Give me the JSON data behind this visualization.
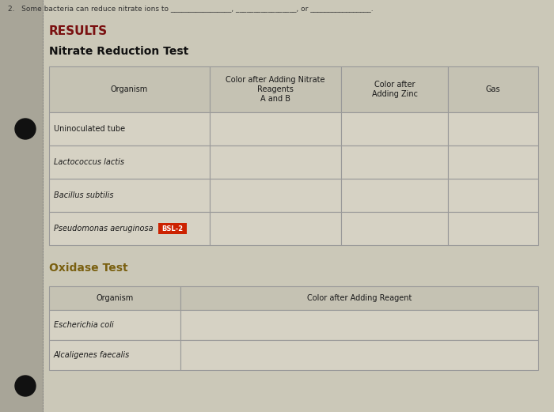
{
  "title_results": "RESULTS",
  "title_nitrate": "Nitrate Reduction Test",
  "title_oxidase": "Oxidase Test",
  "top_text": "2.   Some bacteria can reduce nitrate ions to _________________, _________________, or _________________.",
  "nitrate_headers": [
    "Organism",
    "Color after Adding Nitrate\nReagents\nA and B",
    "Color after\nAdding Zinc",
    "Gas"
  ],
  "nitrate_rows": [
    [
      "Uninoculated tube",
      "",
      "",
      ""
    ],
    [
      "Lactococcus lactis",
      "",
      "",
      ""
    ],
    [
      "Bacillus subtilis",
      "",
      "",
      ""
    ],
    [
      "Pseudomonas aeruginosa",
      "BSL-2",
      "",
      ""
    ]
  ],
  "oxidase_headers": [
    "Organism",
    "Color after Adding Reagent"
  ],
  "oxidase_rows": [
    [
      "Escherichia coli",
      ""
    ],
    [
      "Alcaligenes faecalis",
      ""
    ]
  ],
  "bg_color": "#cbc8b8",
  "table_bg": "#d6d2c4",
  "header_bg": "#c5c2b3",
  "left_margin_color": "#b8b5a5",
  "results_color": "#7a1010",
  "oxidase_color": "#7a6010",
  "bsl2_bg": "#cc2200",
  "bsl2_text": "#ffffff",
  "line_color": "#999999",
  "text_color": "#2a2a2a",
  "bullet_color": "#111111",
  "left_strip_color": "#a8a598",
  "fig_width": 7.0,
  "fig_height": 5.21,
  "dpi": 100
}
